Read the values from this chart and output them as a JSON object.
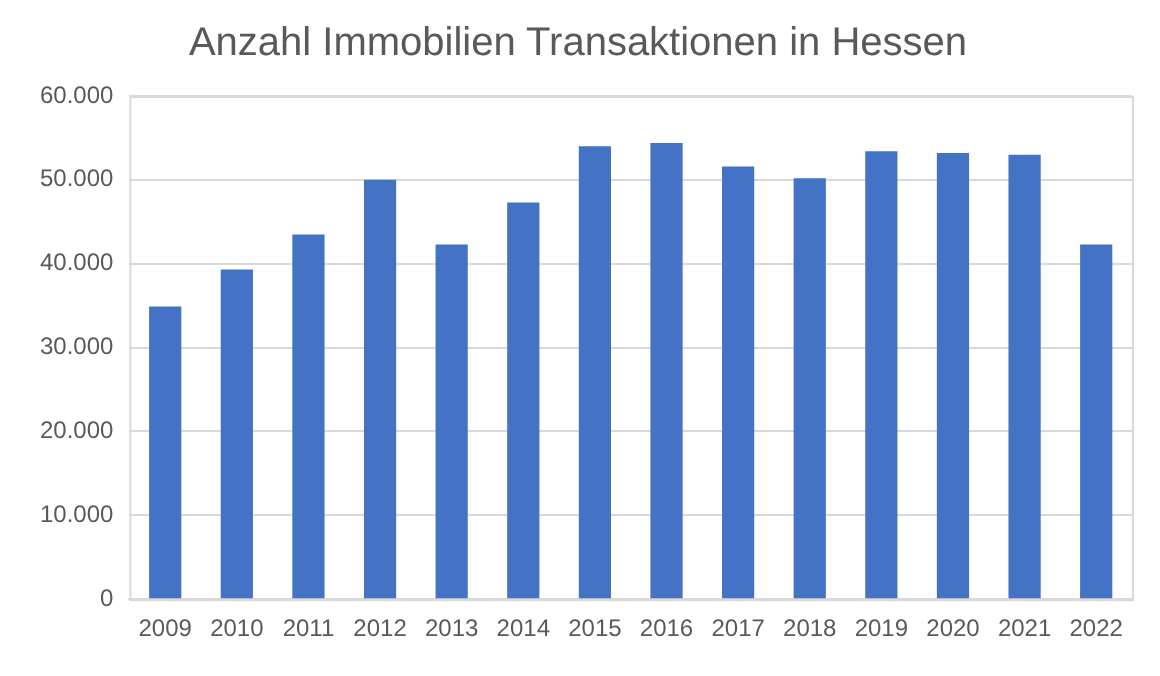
{
  "chart_data": {
    "type": "bar",
    "title": "Anzahl Immobilien Transaktionen in Hessen",
    "categories": [
      "2009",
      "2010",
      "2011",
      "2012",
      "2013",
      "2014",
      "2015",
      "2016",
      "2017",
      "2018",
      "2019",
      "2020",
      "2021",
      "2022"
    ],
    "values": [
      34900,
      39300,
      43500,
      50000,
      42300,
      47300,
      54000,
      54400,
      51600,
      50200,
      53400,
      53200,
      53000,
      42300
    ],
    "color": "#4472c4",
    "ylim": [
      0,
      60000
    ],
    "yticks": [
      0,
      {
        "value": 10000,
        "label": "10.000"
      },
      {
        "value": 20000,
        "label": "20.000"
      },
      {
        "value": 30000,
        "label": "30.000"
      },
      {
        "value": 40000,
        "label": "40.000"
      },
      {
        "value": 50000,
        "label": "50.000"
      },
      {
        "value": 60000,
        "label": "60.000"
      }
    ],
    "grid": "y"
  }
}
